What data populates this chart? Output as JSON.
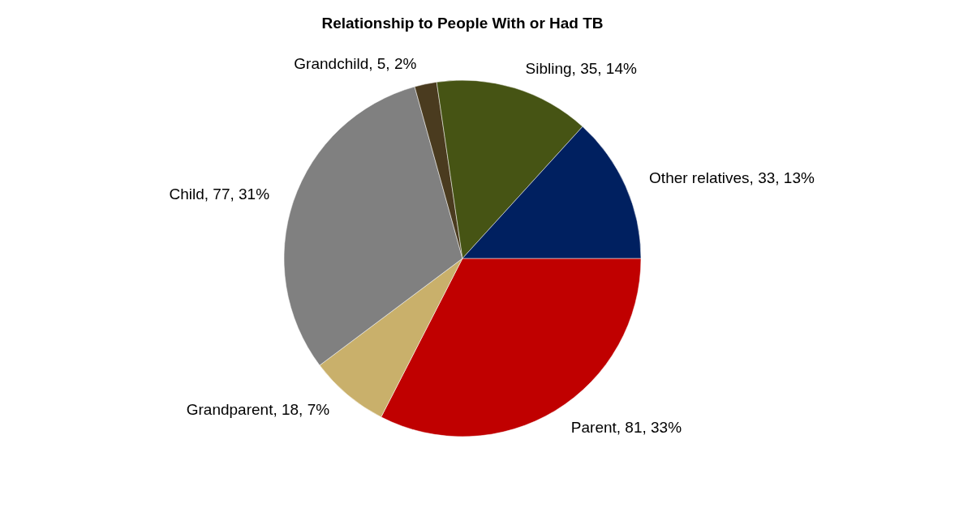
{
  "chart_data": {
    "type": "pie",
    "title": "Relationship to People With or Had TB",
    "categories": [
      "Parent",
      "Grandparent",
      "Child",
      "Grandchild",
      "Sibling",
      "Other relatives"
    ],
    "values": [
      81,
      18,
      77,
      5,
      35,
      33
    ],
    "colors": [
      "#c00000",
      "#c9b06b",
      "#808080",
      "#4a3b1f",
      "#465414",
      "#002060"
    ],
    "value_labels": [
      "81, 33%",
      "18, 7%",
      "77, 31%",
      "5, 2%",
      "35, 14%",
      "33, 13%"
    ],
    "legend": false
  }
}
